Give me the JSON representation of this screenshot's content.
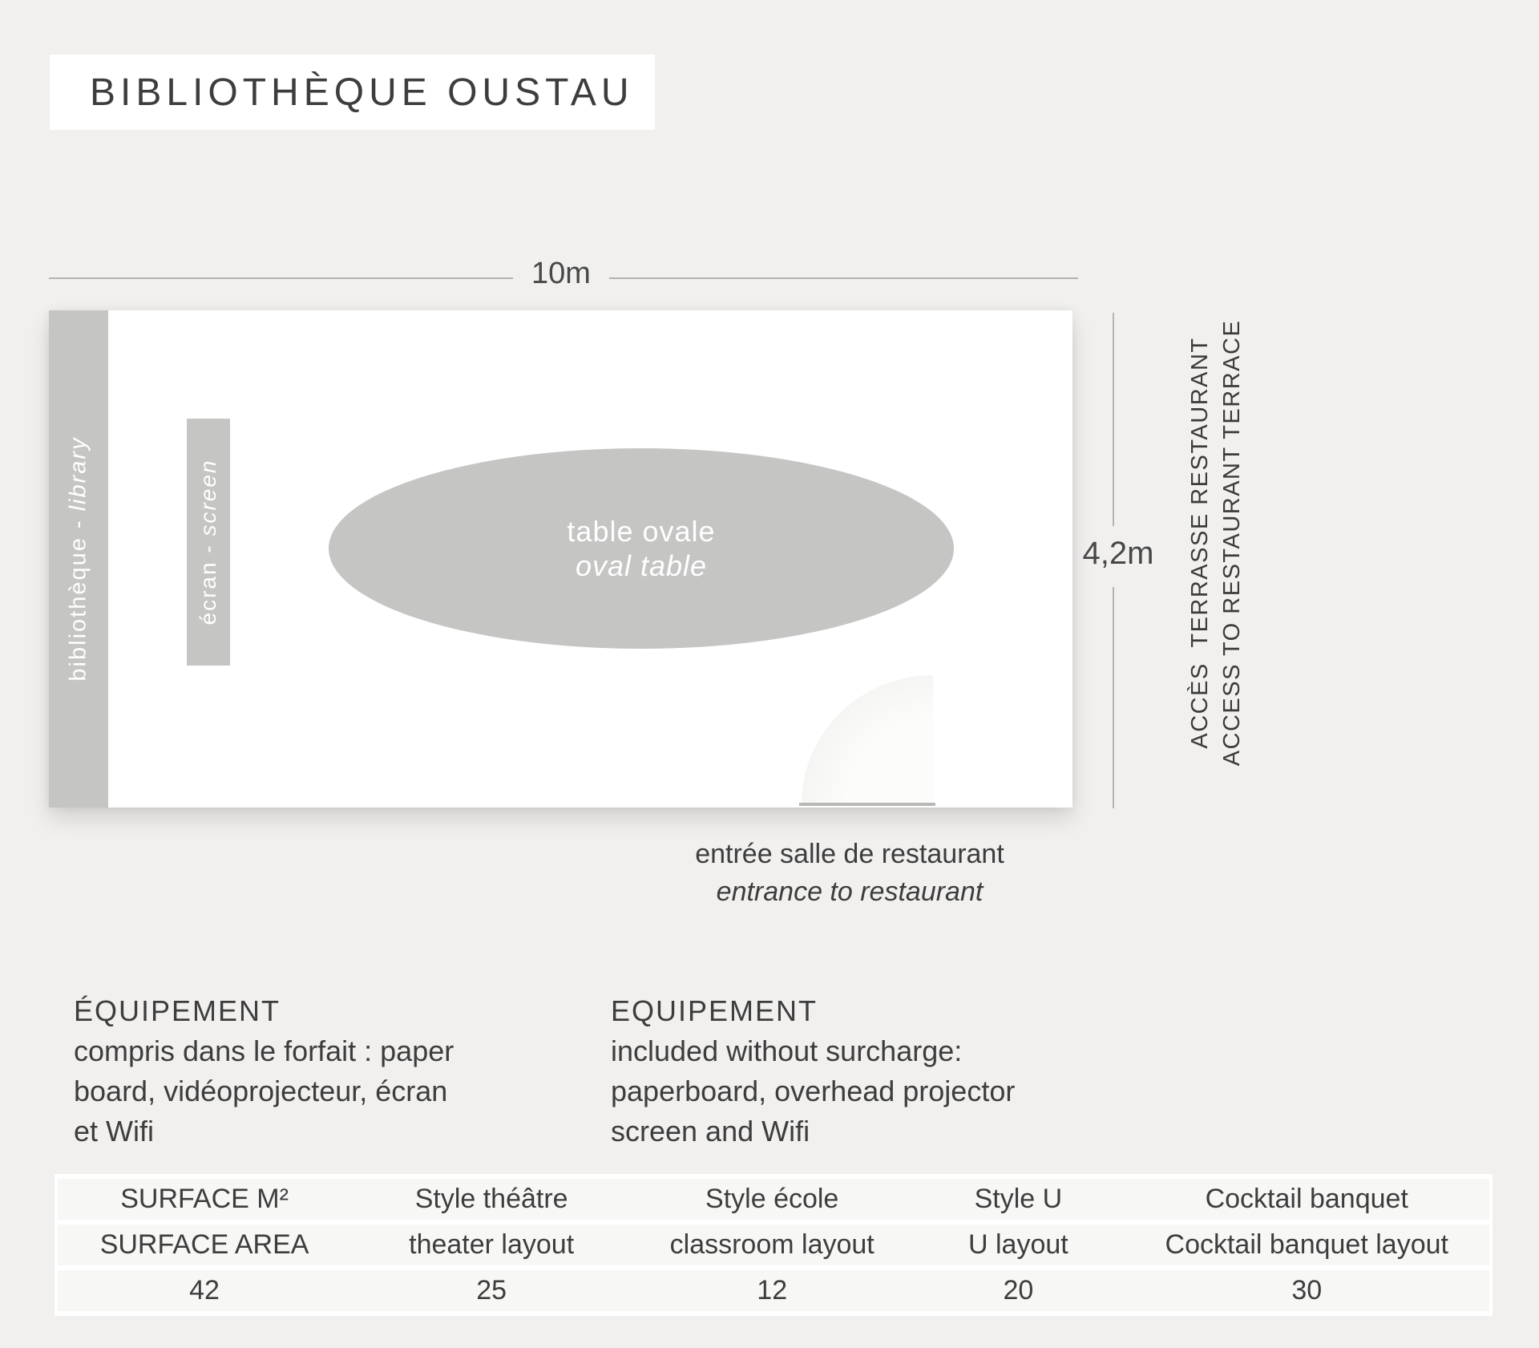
{
  "colors": {
    "background": "#f1f0ef",
    "panel_white": "#ffffff",
    "wall_gray": "#c5c5c4",
    "dimension_line": "#b3b3b2",
    "text_dark": "#3d3d3d",
    "table_row_bg": "#f7f7f6"
  },
  "title": "BIBLIOTHÈQUE OUSTAU",
  "plan": {
    "width_label": "10m",
    "height_label": "4,2m",
    "left_wall_label_fr": "bibliothèque - ",
    "left_wall_label_en": "library",
    "screen_label_fr": "écran - ",
    "screen_label_en": "screen",
    "oval_table_label_fr": "table ovale",
    "oval_table_label_en": "oval table",
    "access_label_fr": "ACCÈS  TERRASSE RESTAURANT",
    "access_label_en": "ACCESS TO RESTAURANT TERRACE",
    "entrance_label_fr": "entrée salle de restaurant",
    "entrance_label_en": "entrance to restaurant"
  },
  "equipment_fr": {
    "heading": "ÉQUIPEMENT",
    "lines": [
      "compris dans le forfait : paper",
      "board, vidéoprojecteur, écran",
      "et Wifi"
    ]
  },
  "equipment_en": {
    "heading": "EQUIPEMENT",
    "lines": [
      "included without surcharge:",
      "paperboard, overhead projector",
      "screen and Wifi"
    ]
  },
  "capacity_table": {
    "columns": [
      {
        "header_fr": "SURFACE M²",
        "header_en": "SURFACE AREA",
        "value": "42"
      },
      {
        "header_fr": "Style théâtre",
        "header_en": "theater layout",
        "value": "25"
      },
      {
        "header_fr": "Style école",
        "header_en": "classroom layout",
        "value": "12"
      },
      {
        "header_fr": "Style U",
        "header_en": "U layout",
        "value": "20"
      },
      {
        "header_fr": "Cocktail banquet",
        "header_en": "Cocktail banquet layout",
        "value": "30"
      }
    ]
  }
}
